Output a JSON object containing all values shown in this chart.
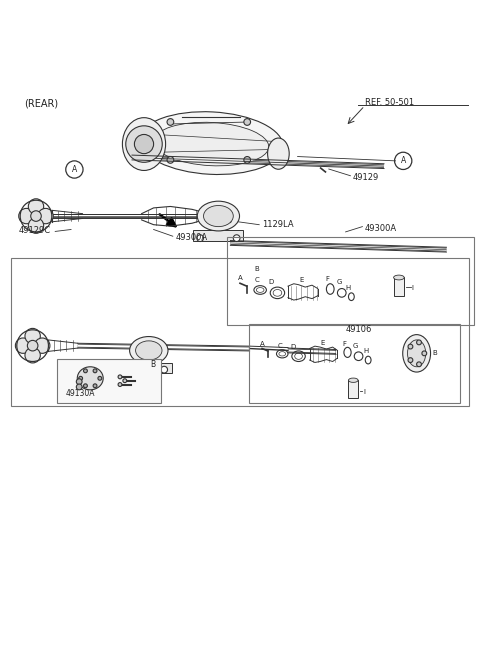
{
  "title": "",
  "bg_color": "#ffffff",
  "line_color": "#333333",
  "fig_width": 4.8,
  "fig_height": 6.51,
  "dpi": 100,
  "labels": {
    "rear": "(REAR)",
    "ref": "REF. 50-501",
    "49129": "49129",
    "49300A_top": "49300A",
    "49300A_mid": "49300A",
    "49129C": "49129C",
    "1129LA": "1129LA",
    "49106": "49106",
    "49130A": "49130A"
  }
}
